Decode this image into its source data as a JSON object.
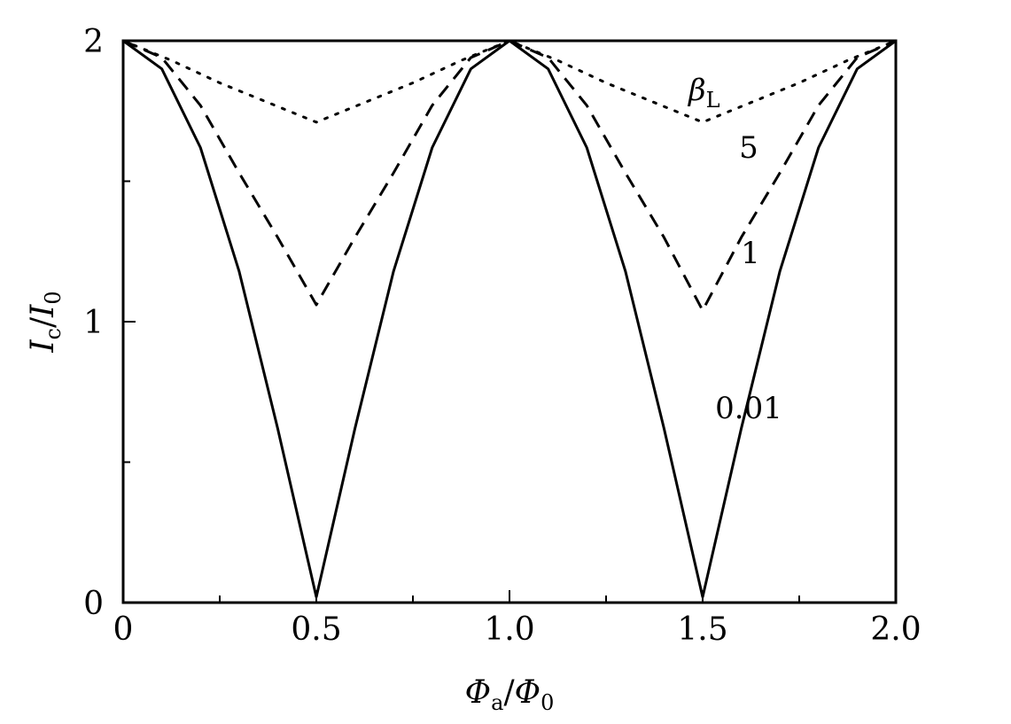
{
  "chart_data": {
    "type": "line",
    "xlabel": {
      "num_symbol": "Φ",
      "num_sub": "a",
      "slash": "/",
      "den_symbol": "Φ",
      "den_sub": "0"
    },
    "ylabel": {
      "num_symbol": "I",
      "num_sub": "c",
      "slash": "/",
      "den_symbol": "I",
      "den_sub": "0"
    },
    "xlim": [
      0,
      2.0
    ],
    "ylim": [
      0,
      2
    ],
    "x_ticks": [
      {
        "value": 0,
        "label": "0"
      },
      {
        "value": 0.5,
        "label": "0.5"
      },
      {
        "value": 1.0,
        "label": "1.0"
      },
      {
        "value": 1.5,
        "label": "1.5"
      },
      {
        "value": 2.0,
        "label": "2.0"
      }
    ],
    "x_minor_ticks": [
      0.25,
      0.75,
      1.25,
      1.75
    ],
    "y_ticks": [
      {
        "value": 0,
        "label": "0"
      },
      {
        "value": 1,
        "label": "1"
      },
      {
        "value": 2,
        "label": "2"
      }
    ],
    "y_minor_ticks": [
      0.5,
      1.5
    ],
    "grid": false,
    "legend_title": {
      "symbol": "β",
      "sub": "L"
    },
    "series": [
      {
        "label": "0.01",
        "style": "solid",
        "x": [
          0,
          0.1,
          0.2,
          0.3,
          0.4,
          0.5,
          0.6,
          0.7,
          0.8,
          0.9,
          1.0,
          1.1,
          1.2,
          1.3,
          1.4,
          1.5,
          1.6,
          1.7,
          1.8,
          1.9,
          2.0
        ],
        "y": [
          2.0,
          1.9,
          1.62,
          1.18,
          0.62,
          0.02,
          0.62,
          1.18,
          1.62,
          1.9,
          2.0,
          1.9,
          1.62,
          1.18,
          0.62,
          0.02,
          0.62,
          1.18,
          1.62,
          1.9,
          2.0
        ]
      },
      {
        "label": "1",
        "style": "dashed",
        "x": [
          0,
          0.1,
          0.2,
          0.3,
          0.4,
          0.5,
          0.6,
          0.7,
          0.8,
          0.9,
          1.0,
          1.1,
          1.2,
          1.3,
          1.4,
          1.5,
          1.6,
          1.7,
          1.8,
          1.9,
          2.0
        ],
        "y": [
          2.0,
          1.94,
          1.77,
          1.53,
          1.3,
          1.06,
          1.3,
          1.53,
          1.77,
          1.94,
          2.0,
          1.94,
          1.77,
          1.53,
          1.3,
          1.04,
          1.3,
          1.53,
          1.77,
          1.94,
          2.0
        ]
      },
      {
        "label": "5",
        "style": "dotted",
        "x": [
          0,
          0.125,
          0.25,
          0.375,
          0.5,
          0.625,
          0.75,
          0.875,
          1.0,
          1.125,
          1.25,
          1.375,
          1.5,
          1.625,
          1.75,
          1.875,
          2.0
        ],
        "y": [
          2.0,
          1.93,
          1.85,
          1.78,
          1.71,
          1.78,
          1.85,
          1.93,
          2.0,
          1.93,
          1.85,
          1.78,
          1.71,
          1.78,
          1.85,
          1.93,
          2.0
        ]
      }
    ]
  }
}
